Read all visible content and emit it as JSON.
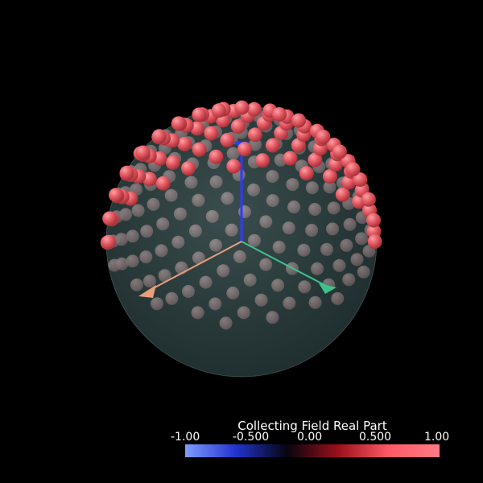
{
  "viewport": {
    "colors": {
      "background": "#000000",
      "sphere_fill": "#5d7f80",
      "sphere_edge": "#6f8f90",
      "marker_color": "#e0565f",
      "marker_highlight": "#ff9ea5",
      "axis_x_color": "#e8a07a",
      "axis_y_color": "#3ec28c",
      "axis_z_color": "#2e3cff"
    }
  },
  "colorbar": {
    "title": "Collecting Field Real Part",
    "ticks": [
      "-1.00",
      "-0.500",
      "0.00",
      "0.500",
      "1.00"
    ],
    "range": [
      -1.0,
      1.0
    ],
    "gradient_stops": [
      "#7f9cff",
      "#2233cc",
      "#050510",
      "#9a0f1a",
      "#ff5a66",
      "#ff7a84"
    ]
  }
}
